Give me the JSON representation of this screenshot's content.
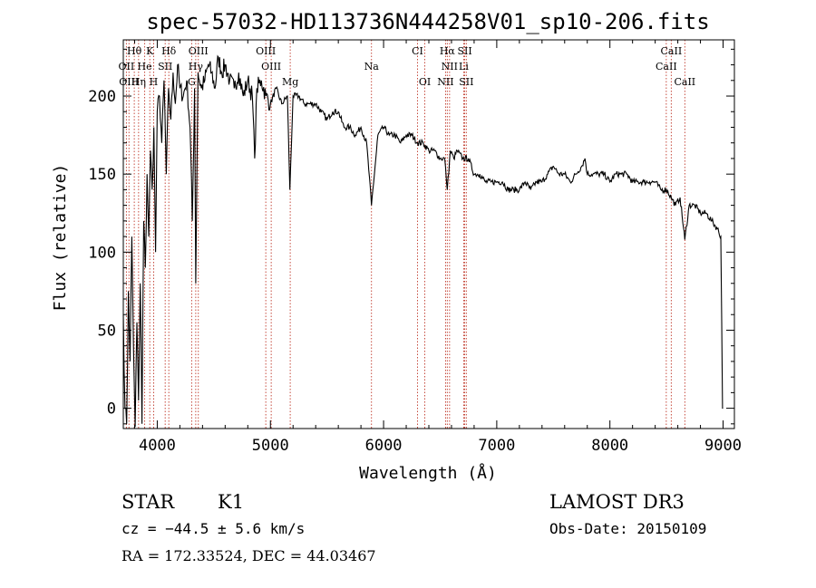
{
  "chart_data": {
    "type": "line",
    "title": "spec-57032-HD113736N444258V01_sp10-206.fits",
    "xlabel": "Wavelength (Å)",
    "ylabel": "Flux (relative)",
    "xlim": [
      3700,
      9100
    ],
    "ylim": [
      -13,
      236
    ],
    "xticks": [
      4000,
      5000,
      6000,
      7000,
      8000,
      9000
    ],
    "yticks": [
      0,
      50,
      100,
      150,
      200
    ],
    "series": [
      {
        "name": "flux",
        "x": [
          3700,
          3715,
          3730,
          3745,
          3760,
          3775,
          3790,
          3805,
          3820,
          3835,
          3850,
          3865,
          3880,
          3895,
          3910,
          3925,
          3940,
          3955,
          3970,
          3985,
          4000,
          4020,
          4040,
          4060,
          4080,
          4100,
          4120,
          4140,
          4160,
          4180,
          4200,
          4230,
          4260,
          4290,
          4310,
          4330,
          4340,
          4360,
          4390,
          4420,
          4450,
          4480,
          4510,
          4540,
          4570,
          4600,
          4640,
          4680,
          4720,
          4760,
          4800,
          4840,
          4861,
          4880,
          4920,
          4960,
          5000,
          5050,
          5100,
          5150,
          5172,
          5200,
          5250,
          5300,
          5350,
          5400,
          5450,
          5500,
          5550,
          5600,
          5650,
          5700,
          5750,
          5800,
          5850,
          5893,
          5950,
          6000,
          6050,
          6100,
          6150,
          6200,
          6250,
          6300,
          6350,
          6400,
          6450,
          6500,
          6540,
          6563,
          6590,
          6620,
          6650,
          6700,
          6750,
          6800,
          6850,
          6900,
          6950,
          7000,
          7050,
          7100,
          7150,
          7200,
          7250,
          7300,
          7350,
          7400,
          7450,
          7500,
          7550,
          7600,
          7650,
          7700,
          7750,
          7780,
          7800,
          7850,
          7900,
          7950,
          8000,
          8050,
          8100,
          8150,
          8200,
          8250,
          8300,
          8350,
          8400,
          8450,
          8500,
          8542,
          8580,
          8620,
          8662,
          8700,
          8750,
          8800,
          8850,
          8900,
          8950,
          8980,
          8995,
          9000
        ],
        "values": [
          60,
          0,
          -10,
          75,
          30,
          110,
          40,
          -12,
          55,
          5,
          80,
          -10,
          120,
          90,
          150,
          110,
          165,
          140,
          180,
          100,
          190,
          200,
          170,
          210,
          150,
          205,
          185,
          215,
          195,
          220,
          205,
          200,
          210,
          180,
          120,
          205,
          80,
          215,
          205,
          210,
          220,
          215,
          205,
          225,
          215,
          220,
          210,
          205,
          215,
          200,
          210,
          200,
          160,
          205,
          210,
          200,
          195,
          205,
          195,
          200,
          140,
          200,
          200,
          195,
          195,
          195,
          190,
          185,
          190,
          190,
          180,
          180,
          175,
          180,
          170,
          130,
          175,
          180,
          175,
          175,
          170,
          175,
          175,
          170,
          170,
          165,
          165,
          160,
          160,
          140,
          165,
          160,
          165,
          160,
          160,
          150,
          150,
          145,
          145,
          145,
          145,
          140,
          140,
          140,
          145,
          140,
          145,
          145,
          150,
          155,
          150,
          150,
          145,
          150,
          155,
          160,
          150,
          150,
          150,
          150,
          145,
          150,
          150,
          150,
          145,
          145,
          145,
          145,
          145,
          140,
          140,
          135,
          130,
          135,
          108,
          130,
          130,
          125,
          125,
          120,
          115,
          110,
          0,
          0
        ]
      }
    ],
    "lines": [
      {
        "label": "Hθ",
        "x": 3797,
        "row": 0
      },
      {
        "label": "K",
        "x": 3934,
        "row": 0
      },
      {
        "label": "Hδ",
        "x": 4102,
        "row": 0
      },
      {
        "label": "OIII",
        "x": 4363,
        "row": 0
      },
      {
        "label": "OIII",
        "x": 4959,
        "row": 0
      },
      {
        "label": "CI",
        "x": 6300,
        "row": 0
      },
      {
        "label": "Hα",
        "x": 6563,
        "row": 0
      },
      {
        "label": "SII",
        "x": 6717,
        "row": 0
      },
      {
        "label": "CaII",
        "x": 8542,
        "row": 0
      },
      {
        "label": "OII",
        "x": 3727,
        "row": 1
      },
      {
        "label": "He",
        "x": 3889,
        "row": 1
      },
      {
        "label": "SII",
        "x": 4070,
        "row": 1
      },
      {
        "label": "Hγ",
        "x": 4340,
        "row": 1
      },
      {
        "label": "OIII",
        "x": 5007,
        "row": 1
      },
      {
        "label": "Na",
        "x": 5893,
        "row": 1
      },
      {
        "label": "NII",
        "x": 6583,
        "row": 1
      },
      {
        "label": "Li",
        "x": 6708,
        "row": 1
      },
      {
        "label": "CaII",
        "x": 8498,
        "row": 1
      },
      {
        "label": "OIII",
        "x": 3750,
        "row": 2
      },
      {
        "label": "Hη",
        "x": 3835,
        "row": 2
      },
      {
        "label": "H",
        "x": 3968,
        "row": 2
      },
      {
        "label": "G",
        "x": 4304,
        "row": 2
      },
      {
        "label": "Mg",
        "x": 5175,
        "row": 2
      },
      {
        "label": "OI",
        "x": 6364,
        "row": 2
      },
      {
        "label": "NII",
        "x": 6548,
        "row": 2
      },
      {
        "label": "SII",
        "x": 6731,
        "row": 2
      },
      {
        "label": "CaII",
        "x": 8662,
        "row": 2
      }
    ]
  },
  "info": {
    "class": "STAR",
    "subclass": "K1",
    "cz": "cz = −44.5 ± 5.6 km/s",
    "radec": "RA = 172.33524, DEC =  44.03467",
    "survey": "LAMOST DR3",
    "obsdate": "Obs-Date: 20150109"
  }
}
